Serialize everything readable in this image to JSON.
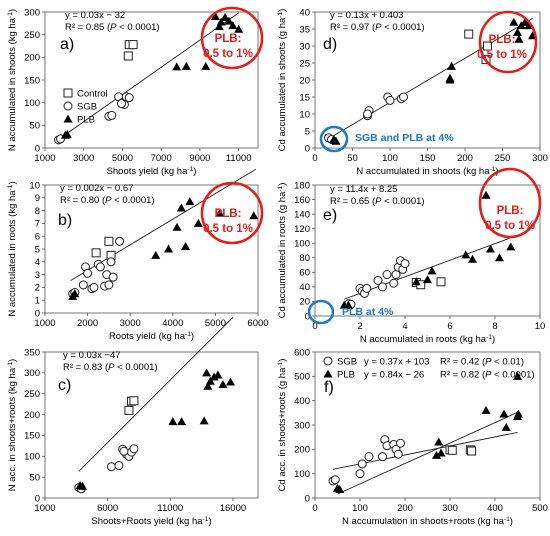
{
  "chart_data": [
    {
      "id": "a",
      "type": "scatter",
      "panel_label": "a)",
      "xlabel": "Shoots yield (kg ha",
      "xlabel_sup": "-1",
      "xlabel_tail": ")",
      "ylabel": "N accumulated in shoots (kg ha",
      "ylabel_sup": "-1",
      "ylabel_tail": ")",
      "xlim": [
        1000,
        12000
      ],
      "ylim": [
        0,
        300
      ],
      "xticks": [
        1000,
        3000,
        5000,
        7000,
        9000,
        11000
      ],
      "yticks": [
        0,
        50,
        100,
        150,
        200,
        250,
        300
      ],
      "equation": "y = 0.03x − 32",
      "r2_prefix": "R² = 0.85 (",
      "r2_p": "P",
      "r2_suffix": " < 0.0001)",
      "fit": {
        "slope": 0.03,
        "intercept": -32,
        "x_range": [
          1900,
          11000
        ]
      },
      "legend": {
        "placement": "middle-left",
        "items": [
          "Control",
          "SGB",
          "PLB"
        ]
      },
      "series": [
        {
          "name": "Control",
          "marker": "square",
          "points": [
            [
              5350,
              228
            ],
            [
              5550,
              228
            ],
            [
              5300,
              203
            ]
          ]
        },
        {
          "name": "SGB",
          "marker": "circle",
          "points": [
            [
              1700,
              18
            ],
            [
              1800,
              20
            ],
            [
              4300,
              70
            ],
            [
              4450,
              72
            ],
            [
              4800,
              113
            ],
            [
              5000,
              100
            ],
            [
              5100,
              96
            ],
            [
              5200,
              113
            ],
            [
              5350,
              111
            ],
            [
              4950,
              98
            ]
          ]
        },
        {
          "name": "PLB",
          "marker": "triangle",
          "points": [
            [
              2050,
              28
            ],
            [
              2150,
              30
            ],
            [
              7800,
              179
            ],
            [
              8300,
              180
            ],
            [
              9300,
              180
            ],
            [
              9800,
              290
            ],
            [
              10000,
              268
            ],
            [
              10300,
              288
            ],
            [
              10500,
              280
            ],
            [
              10700,
              270
            ],
            [
              11000,
              262
            ],
            [
              10100,
              278
            ]
          ]
        }
      ],
      "annotations": [
        {
          "text": "PLB:\n0.5 to 1%",
          "color": "#e0201b"
        }
      ]
    },
    {
      "id": "d",
      "type": "scatter",
      "panel_label": "d)",
      "xlabel": "N accumulated in shoots (kg ha",
      "xlabel_sup": "-1",
      "xlabel_tail": ")",
      "ylabel": "Cd accumulated in shoots (g ha",
      "ylabel_sup": "-1",
      "ylabel_tail": ")",
      "xlim": [
        0,
        300
      ],
      "ylim": [
        0,
        40
      ],
      "xticks": [
        0,
        50,
        100,
        150,
        200,
        250,
        300
      ],
      "yticks": [
        0,
        5,
        10,
        15,
        20,
        25,
        30,
        35,
        40
      ],
      "equation": "y = 0.13x + 0.403",
      "r2_prefix": "R² = 0.97 (",
      "r2_p": "P",
      "r2_suffix": " < 0.0001)",
      "fit": {
        "slope": 0.13,
        "intercept": 0.403,
        "x_range": [
          15,
          290
        ]
      },
      "series": [
        {
          "name": "Control",
          "marker": "square",
          "points": [
            [
              205,
              33.5
            ],
            [
              230,
              30
            ],
            [
              228,
              26
            ]
          ]
        },
        {
          "name": "SGB",
          "marker": "circle",
          "points": [
            [
              18,
              3
            ],
            [
              22,
              2.5
            ],
            [
              70,
              9.5
            ],
            [
              72,
              11
            ],
            [
              97,
              15
            ],
            [
              100,
              14
            ],
            [
              115,
              14.5
            ],
            [
              118,
              15
            ],
            [
              70,
              10
            ]
          ]
        },
        {
          "name": "PLB",
          "marker": "triangle",
          "points": [
            [
              25,
              2.5
            ],
            [
              28,
              2
            ],
            [
              180,
              20.5
            ],
            [
              182,
              24
            ],
            [
              180,
              20
            ],
            [
              265,
              37
            ],
            [
              270,
              34
            ],
            [
              275,
              36
            ],
            [
              280,
              37
            ],
            [
              285,
              36
            ],
            [
              290,
              33
            ],
            [
              272,
              32
            ]
          ]
        }
      ],
      "annotations": [
        {
          "text": "PLB:\n0.5 to 1%",
          "color": "#e0201b"
        },
        {
          "text": "SGB and PLB at 4%",
          "color": "#1f78c8"
        }
      ]
    },
    {
      "id": "b",
      "type": "scatter",
      "panel_label": "b)",
      "xlabel": "Roots yield (kg ha",
      "xlabel_sup": "-1",
      "xlabel_tail": ")",
      "ylabel": "N accumulated in roots (kg ha",
      "ylabel_sup": "-1",
      "ylabel_tail": ")",
      "xlim": [
        1000,
        6000
      ],
      "ylim": [
        0,
        10
      ],
      "xticks": [
        1000,
        2000,
        3000,
        4000,
        5000,
        6000
      ],
      "yticks": [
        0,
        1,
        2,
        3,
        4,
        5,
        6,
        7,
        8,
        9,
        10
      ],
      "equation": "y = 0.002x − 0.67",
      "r2_prefix": "R² = 0.80 (",
      "r2_p": "P",
      "r2_suffix": " < 0.0001)",
      "fit": {
        "slope": 0.002,
        "intercept": -0.67,
        "x_range": [
          1600,
          5950
        ]
      },
      "series": [
        {
          "name": "Control",
          "marker": "square",
          "points": [
            [
              2200,
              4.7
            ],
            [
              2500,
              5.6
            ],
            [
              2550,
              4.5
            ]
          ]
        },
        {
          "name": "SGB",
          "marker": "circle",
          "points": [
            [
              1650,
              1.5
            ],
            [
              1700,
              1.6
            ],
            [
              1900,
              2.2
            ],
            [
              1950,
              3.6
            ],
            [
              2000,
              3.1
            ],
            [
              2100,
              1.9
            ],
            [
              2150,
              2.0
            ],
            [
              2250,
              3.8
            ],
            [
              2300,
              3.6
            ],
            [
              2400,
              2.1
            ],
            [
              2450,
              3.0
            ],
            [
              2600,
              2.8
            ],
            [
              2750,
              5.6
            ],
            [
              2550,
              4.0
            ],
            [
              2500,
              2.2
            ]
          ]
        },
        {
          "name": "PLB",
          "marker": "triangle",
          "points": [
            [
              1650,
              1.3
            ],
            [
              1700,
              1.5
            ],
            [
              3600,
              4.5
            ],
            [
              3900,
              5.0
            ],
            [
              4100,
              6.7
            ],
            [
              4200,
              8.2
            ],
            [
              4300,
              5.2
            ],
            [
              4400,
              8.7
            ],
            [
              4600,
              7.0
            ],
            [
              5100,
              7.8
            ],
            [
              5900,
              7.6
            ]
          ]
        }
      ],
      "annotations": [
        {
          "text": "PLB:\n0.5 to 1%",
          "color": "#e0201b"
        }
      ]
    },
    {
      "id": "e",
      "type": "scatter",
      "panel_label": "e)",
      "xlabel": "N accumulated in roots (kg ha",
      "xlabel_sup": "-1",
      "xlabel_tail": ")",
      "ylabel": "Cd accumulated in roots (g ha",
      "ylabel_sup": "-1",
      "ylabel_tail": ")",
      "xlim": [
        0,
        10
      ],
      "ylim": [
        0,
        180
      ],
      "xticks": [
        0,
        2,
        4,
        6,
        8,
        10
      ],
      "yticks": [
        0,
        20,
        40,
        60,
        80,
        100,
        120,
        140,
        160,
        180
      ],
      "equation": "y = 11.4x + 8.25",
      "r2_prefix": "R² = 0.65 (",
      "r2_p": "P",
      "r2_suffix": " < 0.0001)",
      "fit": {
        "slope": 11.4,
        "intercept": 8.25,
        "x_range": [
          1.3,
          8.8
        ]
      },
      "series": [
        {
          "name": "Control",
          "marker": "square",
          "points": [
            [
              4.5,
              46
            ],
            [
              5.6,
              47
            ],
            [
              4.7,
              43
            ]
          ]
        },
        {
          "name": "SGB",
          "marker": "circle",
          "points": [
            [
              1.5,
              17
            ],
            [
              1.6,
              16
            ],
            [
              2.0,
              38
            ],
            [
              2.1,
              34
            ],
            [
              2.2,
              31
            ],
            [
              2.3,
              38
            ],
            [
              2.8,
              49
            ],
            [
              3.0,
              40
            ],
            [
              3.2,
              57
            ],
            [
              3.6,
              57
            ],
            [
              3.7,
              67
            ],
            [
              3.8,
              76
            ],
            [
              3.9,
              64
            ],
            [
              4.0,
              72
            ],
            [
              3.5,
              45
            ]
          ]
        },
        {
          "name": "PLB",
          "marker": "triangle",
          "points": [
            [
              1.3,
              15
            ],
            [
              1.5,
              14
            ],
            [
              4.5,
              47
            ],
            [
              5.0,
              50
            ],
            [
              5.2,
              62
            ],
            [
              6.7,
              84
            ],
            [
              7.0,
              78
            ],
            [
              7.6,
              166
            ],
            [
              7.8,
              92
            ],
            [
              8.2,
              80
            ],
            [
              8.7,
              95
            ]
          ]
        }
      ],
      "annotations": [
        {
          "text": "PLB:\n0.5 to 1%",
          "color": "#e0201b"
        },
        {
          "text": "PLB at 4%",
          "color": "#1f78c8"
        }
      ]
    },
    {
      "id": "c",
      "type": "scatter",
      "panel_label": "c)",
      "xlabel": "Shoots+Roots  yield (kg ha",
      "xlabel_sup": "-1",
      "xlabel_tail": ")",
      "ylabel": "N acc. in shoots+roots  (kg ha",
      "ylabel_sup": "-1",
      "ylabel_tail": ")",
      "xlim": [
        1000,
        18000
      ],
      "ylim": [
        0,
        350
      ],
      "xticks": [
        1000,
        6000,
        11000,
        16000
      ],
      "yticks": [
        0,
        50,
        100,
        150,
        200,
        250,
        300,
        350
      ],
      "equation": "y = 0.03x −47",
      "r2_prefix": "R² = 0.83 (",
      "r2_p": "P",
      "r2_suffix": " < 0.0001)",
      "fit": {
        "slope": 0.03,
        "intercept": -47,
        "x_range": [
          3700,
          16000
        ]
      },
      "series": [
        {
          "name": "Control",
          "marker": "square",
          "points": [
            [
              7700,
              210
            ],
            [
              7900,
              232
            ],
            [
              8100,
              233
            ]
          ]
        },
        {
          "name": "SGB",
          "marker": "circle",
          "points": [
            [
              3700,
              25
            ],
            [
              3900,
              22
            ],
            [
              6300,
              75
            ],
            [
              6900,
              78
            ],
            [
              7200,
              117
            ],
            [
              7500,
              105
            ],
            [
              7700,
              100
            ],
            [
              7900,
              110
            ],
            [
              8100,
              118
            ],
            [
              7300,
              112
            ]
          ]
        },
        {
          "name": "PLB",
          "marker": "triangle",
          "points": [
            [
              3800,
              30
            ],
            [
              4000,
              28
            ],
            [
              11200,
              183
            ],
            [
              11900,
              183
            ],
            [
              13700,
              185
            ],
            [
              13900,
              300
            ],
            [
              14200,
              280
            ],
            [
              14500,
              290
            ],
            [
              14800,
              295
            ],
            [
              15200,
              272
            ],
            [
              15800,
              278
            ],
            [
              14000,
              268
            ]
          ]
        }
      ]
    },
    {
      "id": "f",
      "type": "scatter",
      "panel_label": "f)",
      "xlabel": "N accumulation in shoots+roots (kg ha",
      "xlabel_sup": "-1",
      "xlabel_tail": ")",
      "ylabel": "Cd acc. in shoots+roots  (g ha",
      "ylabel_sup": "-1",
      "ylabel_tail": ")",
      "xlim": [
        0,
        500
      ],
      "ylim": [
        0,
        600
      ],
      "xticks": [
        0,
        100,
        200,
        300,
        400,
        500
      ],
      "yticks": [
        0,
        100,
        200,
        300,
        400,
        500,
        600
      ],
      "legend": {
        "placement": "top-left",
        "items": [
          {
            "name": "SGB",
            "marker": "circle",
            "eq": "y = 0.37x + 103",
            "r2": "R² = 0.42 (",
            "p": "P",
            "tail": " < 0.01)"
          },
          {
            "name": "PLB",
            "marker": "triangle",
            "eq": "y = 0.84x − 26",
            "r2": "R² = 0.82 (",
            "p": "P",
            "tail": " < 0.0001)"
          }
        ]
      },
      "fits": [
        {
          "name": "SGB",
          "slope": 0.37,
          "intercept": 103,
          "x_range": [
            40,
            450
          ]
        },
        {
          "name": "PLB",
          "slope": 0.84,
          "intercept": -26,
          "x_range": [
            50,
            450
          ]
        }
      ],
      "series": [
        {
          "name": "Control",
          "marker": "square",
          "points": [
            [
              300,
              198
            ],
            [
              305,
              196
            ],
            [
              345,
              198
            ],
            [
              348,
              193
            ]
          ]
        },
        {
          "name": "SGB",
          "marker": "circle",
          "points": [
            [
              40,
              70
            ],
            [
              45,
              75
            ],
            [
              100,
              100
            ],
            [
              105,
              140
            ],
            [
              120,
              170
            ],
            [
              150,
              170
            ],
            [
              155,
              240
            ],
            [
              160,
              215
            ],
            [
              175,
              220
            ],
            [
              180,
              200
            ],
            [
              185,
              180
            ],
            [
              190,
              225
            ]
          ]
        },
        {
          "name": "PLB",
          "marker": "triangle",
          "points": [
            [
              50,
              40
            ],
            [
              55,
              35
            ],
            [
              270,
              175
            ],
            [
              275,
              230
            ],
            [
              280,
              185
            ],
            [
              380,
              360
            ],
            [
              420,
              345
            ],
            [
              425,
              290
            ],
            [
              450,
              500
            ],
            [
              452,
              345
            ],
            [
              450,
              335
            ]
          ]
        }
      ]
    }
  ]
}
